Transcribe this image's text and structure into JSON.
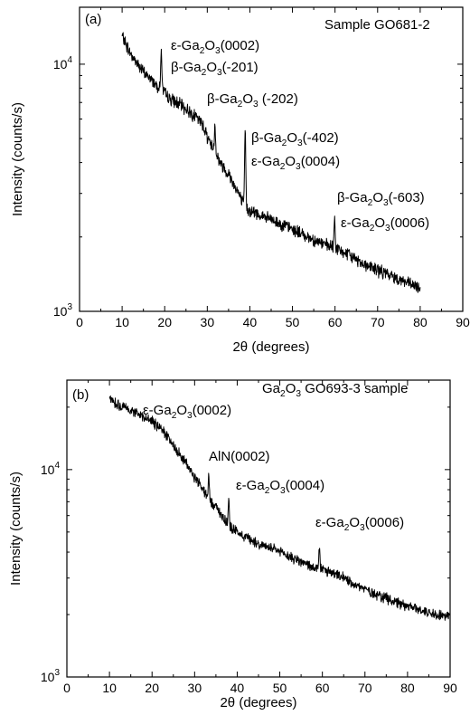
{
  "chart_data": [
    {
      "type": "line",
      "panel_label": "(a)",
      "sample_label": "Sample GO681-2",
      "xlabel": "2θ (degrees)",
      "ylabel": "Intensity (counts/s)",
      "xlim": [
        0,
        90
      ],
      "ylim": [
        1000,
        17000
      ],
      "yscale": "log",
      "x_ticks": [
        "0",
        "10",
        "20",
        "30",
        "40",
        "50",
        "60",
        "70",
        "80",
        "90"
      ],
      "y_ticks": [
        {
          "base": "10",
          "exp": "3",
          "value": 1000
        },
        {
          "base": "10",
          "exp": "4",
          "value": 10000
        }
      ],
      "baseline": [
        [
          10,
          13000
        ],
        [
          12,
          11000
        ],
        [
          15,
          9300
        ],
        [
          18,
          8300
        ],
        [
          19.5,
          7800
        ],
        [
          21,
          7300
        ],
        [
          24,
          6800
        ],
        [
          27,
          6200
        ],
        [
          29,
          5700
        ],
        [
          30,
          5100
        ],
        [
          31,
          4700
        ],
        [
          32,
          4400
        ],
        [
          33,
          4000
        ],
        [
          35,
          3600
        ],
        [
          37,
          3100
        ],
        [
          38.5,
          2700
        ],
        [
          40,
          2550
        ],
        [
          45,
          2350
        ],
        [
          50,
          2150
        ],
        [
          55,
          1950
        ],
        [
          58,
          1850
        ],
        [
          60,
          1800
        ],
        [
          63,
          1700
        ],
        [
          67,
          1550
        ],
        [
          72,
          1420
        ],
        [
          76,
          1330
        ],
        [
          80,
          1230
        ]
      ],
      "peaks": [
        {
          "x": 19.2,
          "y": 11500
        },
        {
          "x": 31.8,
          "y": 5700
        },
        {
          "x": 38.9,
          "y": 5400
        },
        {
          "x": 59.9,
          "y": 2400
        }
      ],
      "annotations": [
        {
          "id": "a1",
          "parts": [
            [
              "ε-Ga",
              ""
            ],
            [
              "2",
              "sub"
            ],
            [
              "O",
              ""
            ],
            [
              "3",
              "sub"
            ],
            [
              "(0002)",
              ""
            ]
          ]
        },
        {
          "id": "a2",
          "parts": [
            [
              "β-Ga",
              ""
            ],
            [
              "2",
              "sub"
            ],
            [
              "O",
              ""
            ],
            [
              "3",
              "sub"
            ],
            [
              "(-201)",
              ""
            ]
          ]
        },
        {
          "id": "a3",
          "parts": [
            [
              "β-Ga",
              ""
            ],
            [
              "2",
              "sub"
            ],
            [
              "O",
              ""
            ],
            [
              "3",
              "sub"
            ],
            [
              " (-202)",
              ""
            ]
          ]
        },
        {
          "id": "a4",
          "parts": [
            [
              "β-Ga",
              ""
            ],
            [
              "2",
              "sub"
            ],
            [
              "O",
              ""
            ],
            [
              "3",
              "sub"
            ],
            [
              "(-402)",
              ""
            ]
          ]
        },
        {
          "id": "a5",
          "parts": [
            [
              "ε-Ga",
              ""
            ],
            [
              "2",
              "sub"
            ],
            [
              "O",
              ""
            ],
            [
              "3",
              "sub"
            ],
            [
              "(0004)",
              ""
            ]
          ]
        },
        {
          "id": "a6",
          "parts": [
            [
              "β-Ga",
              ""
            ],
            [
              "2",
              "sub"
            ],
            [
              "O",
              ""
            ],
            [
              "3",
              "sub"
            ],
            [
              "(-603)",
              ""
            ]
          ]
        },
        {
          "id": "a7",
          "parts": [
            [
              "ε-Ga",
              ""
            ],
            [
              "2",
              "sub"
            ],
            [
              "O",
              ""
            ],
            [
              "3",
              "sub"
            ],
            [
              "(0006)",
              ""
            ]
          ]
        }
      ]
    },
    {
      "type": "line",
      "panel_label": "(b)",
      "sample_label_parts": [
        [
          "Ga",
          ""
        ],
        [
          "2",
          "sub"
        ],
        [
          "O",
          ""
        ],
        [
          "3",
          "sub"
        ],
        [
          " GO693-3 sample",
          ""
        ]
      ],
      "xlabel": "2θ (degrees)",
      "ylabel": "Intensity (counts/s)",
      "xlim": [
        0,
        90
      ],
      "ylim": [
        1000,
        27000
      ],
      "yscale": "log",
      "x_ticks": [
        "0",
        "10",
        "20",
        "30",
        "40",
        "50",
        "60",
        "70",
        "80",
        "90"
      ],
      "y_ticks": [
        {
          "base": "10",
          "exp": "3",
          "value": 1000
        },
        {
          "base": "10",
          "exp": "4",
          "value": 10000
        }
      ],
      "baseline": [
        [
          10,
          22000
        ],
        [
          13,
          20000
        ],
        [
          16,
          19000
        ],
        [
          19,
          17500
        ],
        [
          20,
          17000
        ],
        [
          22,
          15800
        ],
        [
          24,
          14000
        ],
        [
          26,
          12300
        ],
        [
          28,
          10700
        ],
        [
          30,
          9200
        ],
        [
          32,
          8000
        ],
        [
          34,
          7000
        ],
        [
          36,
          6200
        ],
        [
          37,
          5800
        ],
        [
          38,
          5400
        ],
        [
          40,
          5000
        ],
        [
          45,
          4400
        ],
        [
          50,
          4000
        ],
        [
          55,
          3600
        ],
        [
          58,
          3350
        ],
        [
          60,
          3300
        ],
        [
          65,
          3000
        ],
        [
          70,
          2650
        ],
        [
          75,
          2400
        ],
        [
          80,
          2200
        ],
        [
          85,
          2050
        ],
        [
          90,
          1950
        ]
      ],
      "peaks": [
        {
          "x": 33.3,
          "y": 9300
        },
        {
          "x": 38.0,
          "y": 7200
        },
        {
          "x": 59.3,
          "y": 4200
        }
      ],
      "annotations": [
        {
          "id": "b1",
          "parts": [
            [
              "ε-Ga",
              ""
            ],
            [
              "2",
              "sub"
            ],
            [
              "O",
              ""
            ],
            [
              "3",
              "sub"
            ],
            [
              "(0002)",
              ""
            ]
          ]
        },
        {
          "id": "b2",
          "parts": [
            [
              "AlN(0002)",
              ""
            ]
          ]
        },
        {
          "id": "b3",
          "parts": [
            [
              "ε-Ga",
              ""
            ],
            [
              "2",
              "sub"
            ],
            [
              "O",
              ""
            ],
            [
              "3",
              "sub"
            ],
            [
              "(0004)",
              ""
            ]
          ]
        },
        {
          "id": "b4",
          "parts": [
            [
              "ε-Ga",
              ""
            ],
            [
              "2",
              "sub"
            ],
            [
              "O",
              ""
            ],
            [
              "3",
              "sub"
            ],
            [
              "(0006)",
              ""
            ]
          ]
        }
      ]
    }
  ]
}
